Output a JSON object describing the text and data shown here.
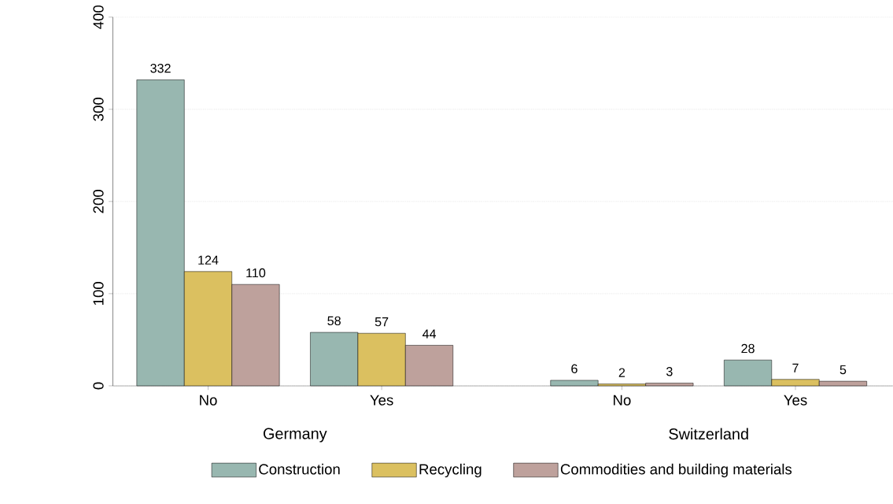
{
  "chart_data": {
    "type": "bar",
    "categories": [
      "No",
      "Yes",
      "No",
      "Yes"
    ],
    "series": [
      {
        "name": "Construction",
        "color": "#98b7b0",
        "values": [
          332,
          58,
          6,
          28
        ]
      },
      {
        "name": "Recycling",
        "color": "#dbc060",
        "values": [
          124,
          57,
          2,
          7
        ]
      },
      {
        "name": "Commodities and building materials",
        "color": "#bea19c",
        "values": [
          110,
          44,
          3,
          5
        ]
      }
    ],
    "annotations": [
      "Germany",
      "Switzerland"
    ],
    "ylim": [
      0,
      400
    ],
    "yticks": [
      0,
      100,
      200,
      300,
      400
    ],
    "grid": "y",
    "legend": "bottom",
    "data_labels": true
  }
}
